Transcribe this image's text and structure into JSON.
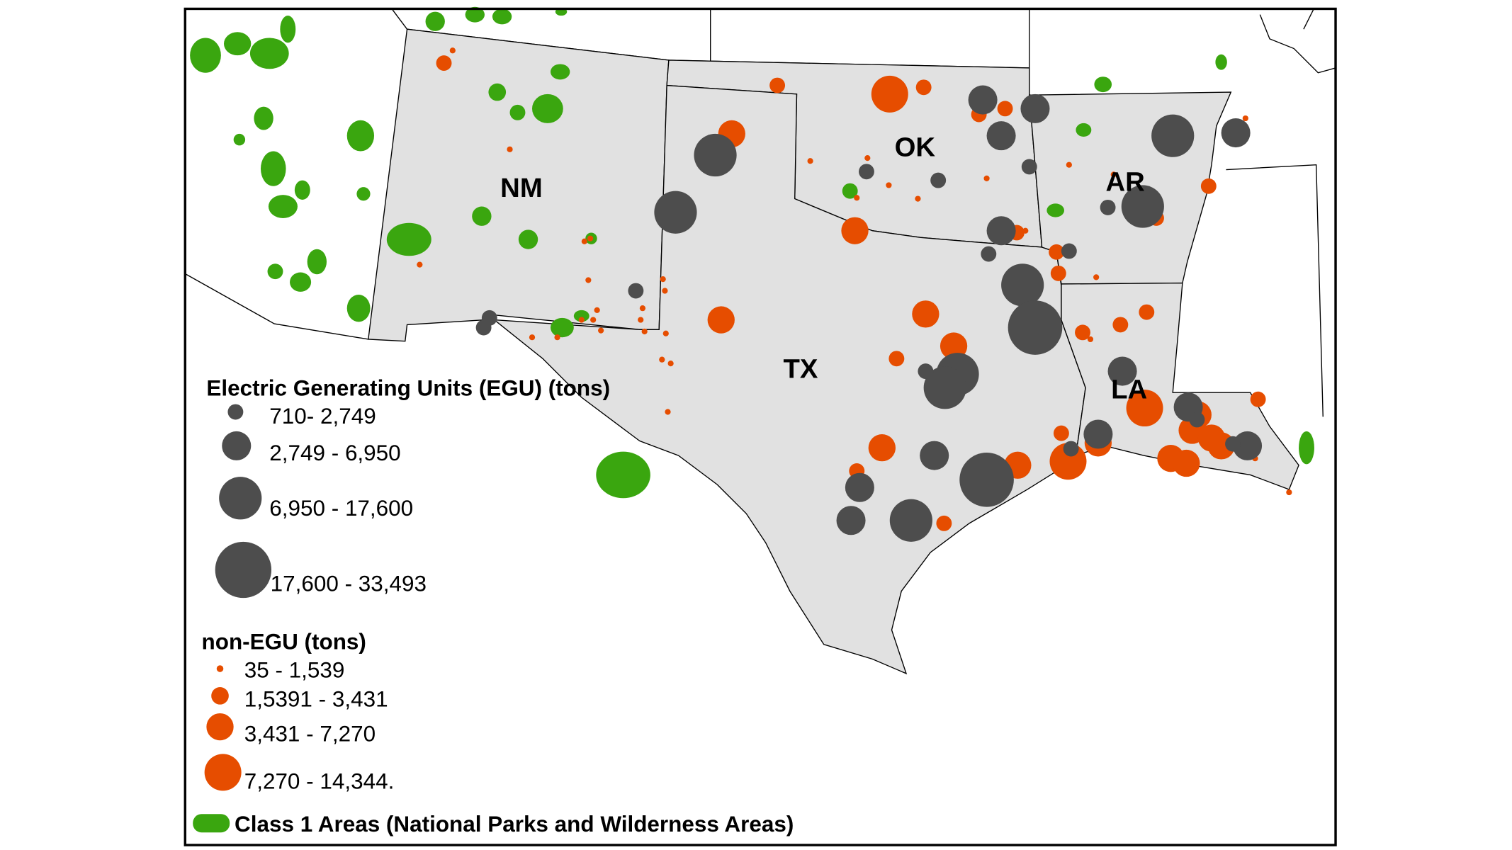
{
  "colors": {
    "egu": "#4d4d4d",
    "non_egu": "#e64d00",
    "class1": "#3aa60f",
    "state_fill": "#e1e1e1",
    "border": "#000000"
  },
  "states": [
    {
      "id": "nm",
      "label": "NM"
    },
    {
      "id": "ok",
      "label": "OK"
    },
    {
      "id": "tx",
      "label": "TX"
    },
    {
      "id": "ar",
      "label": "AR"
    },
    {
      "id": "la",
      "label": "LA"
    }
  ],
  "legend": {
    "egu_title": "Electric Generating Units (EGU) (tons)",
    "egu_items": [
      "710- 2,749",
      "2,749 - 6,950",
      "6,950 - 17,600",
      "17,600 - 33,493"
    ],
    "non_egu_title": "non-EGU (tons)",
    "non_egu_items": [
      "35 - 1,539",
      "1,5391 - 3,431",
      "3,431 - 7,270",
      "7,270 - 14,344."
    ],
    "class1_label": "Class 1 Areas (National Parks and Wilderness Areas)"
  }
}
